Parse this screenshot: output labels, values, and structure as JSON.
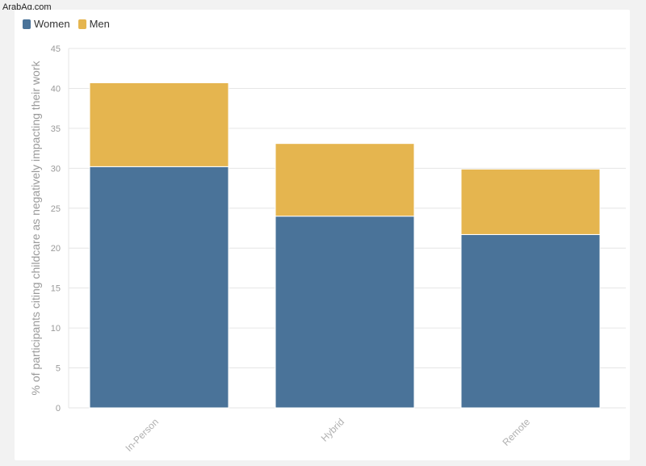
{
  "watermark": "ArabAq.com",
  "colors": {
    "women": "#4a7399",
    "men": "#e5b54f",
    "grid": "#e6e6e6"
  },
  "legend": {
    "women_label": "Women",
    "men_label": "Men"
  },
  "chart_data": {
    "type": "bar",
    "stacked": true,
    "categories": [
      "In-Person",
      "Hybrid",
      "Remote"
    ],
    "series": [
      {
        "name": "Women",
        "values": [
          30.2,
          24.0,
          21.7
        ]
      },
      {
        "name": "Men",
        "values": [
          10.5,
          9.1,
          8.2
        ]
      }
    ],
    "ylabel": "% of participants citing childcare as negatively impacting their work",
    "xlabel": "",
    "ylim": [
      0,
      45
    ],
    "yticks": [
      0,
      5,
      10,
      15,
      20,
      25,
      30,
      35,
      40,
      45
    ],
    "grid": true,
    "legend_position": "top-left"
  }
}
